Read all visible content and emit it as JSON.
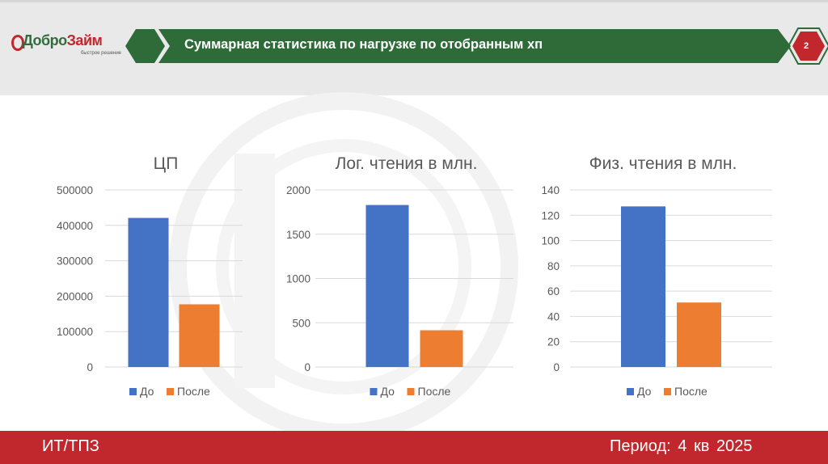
{
  "header": {
    "logo_name_part1": "Добро",
    "logo_name_part2": "Займ",
    "logo_tagline": "быстрое решение",
    "title": "Суммарная статистика по нагрузке по отобранным хп",
    "slide_number": "2"
  },
  "footer": {
    "left": "ИТ/ТПЗ",
    "right": "Период:  4 кв 2025"
  },
  "colors": {
    "header_green": "#2e6b39",
    "footer_red": "#c0282d",
    "series_before": "#4472c4",
    "series_after": "#ed7d31"
  },
  "chart_data": [
    {
      "type": "bar",
      "title": "ЦП",
      "categories": [
        ""
      ],
      "series": [
        {
          "name": "До",
          "values": [
            421000
          ]
        },
        {
          "name": "После",
          "values": [
            177000
          ]
        }
      ],
      "ylim": [
        0,
        500000
      ],
      "yticks": [
        "0",
        "100000",
        "200000",
        "300000",
        "400000",
        "500000"
      ],
      "legend": "bottom",
      "grid": true
    },
    {
      "type": "bar",
      "title": "Лог. чтения в млн.",
      "categories": [
        ""
      ],
      "series": [
        {
          "name": "До",
          "values": [
            1830
          ]
        },
        {
          "name": "После",
          "values": [
            415
          ]
        }
      ],
      "ylim": [
        0,
        2000
      ],
      "yticks": [
        "0",
        "500",
        "1000",
        "1500",
        "2000"
      ],
      "legend": "bottom",
      "grid": true
    },
    {
      "type": "bar",
      "title": "Физ. чтения в млн.",
      "categories": [
        ""
      ],
      "series": [
        {
          "name": "До",
          "values": [
            127
          ]
        },
        {
          "name": "После",
          "values": [
            51
          ]
        }
      ],
      "ylim": [
        0,
        140
      ],
      "yticks": [
        "0",
        "20",
        "40",
        "60",
        "80",
        "100",
        "120",
        "140"
      ],
      "legend": "bottom",
      "grid": true
    }
  ]
}
